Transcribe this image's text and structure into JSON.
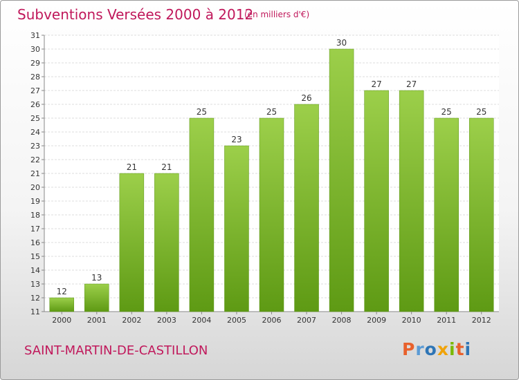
{
  "header": {
    "title": "Subventions Versées 2000 à 2012",
    "subtitle": "(en milliers d'€)"
  },
  "footer": {
    "commune": "SAINT-MARTIN-DE-CASTILLON",
    "logo": "Proxiti"
  },
  "colors": {
    "bar_top": "#9ccf4a",
    "bar_bottom": "#5e9a14",
    "title": "#c0185b",
    "logo_letters": [
      "#e8612c",
      "#5b9bd5",
      "#2e75b6",
      "#f0a30a",
      "#7ab800",
      "#e8612c",
      "#2e75b6"
    ]
  },
  "chart_data": {
    "type": "bar",
    "categories": [
      "2000",
      "2001",
      "2002",
      "2003",
      "2004",
      "2005",
      "2006",
      "2007",
      "2008",
      "2009",
      "2010",
      "2011",
      "2012"
    ],
    "values": [
      12,
      13,
      21,
      21,
      25,
      23,
      25,
      26,
      30,
      27,
      27,
      25,
      25
    ],
    "title": "Subventions Versées 2000 à 2012",
    "subtitle": "(en milliers d'€)",
    "xlabel": "",
    "ylabel": "",
    "ylim": [
      11,
      31
    ],
    "yticks": [
      11,
      12,
      13,
      14,
      15,
      16,
      17,
      18,
      19,
      20,
      21,
      22,
      23,
      24,
      25,
      26,
      27,
      28,
      29,
      30,
      31
    ],
    "grid": true,
    "legend": "none"
  }
}
